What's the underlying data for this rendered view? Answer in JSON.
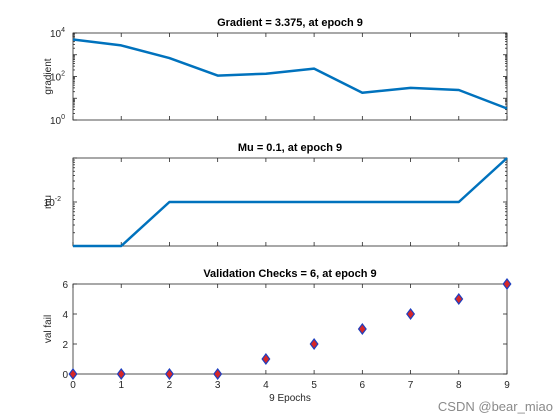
{
  "watermark": "CSDN @bear_miao",
  "colors": {
    "line": "#0072BD",
    "marker_fill": "#D62728",
    "marker_edge": "#1F3FBF",
    "axis": "#262626",
    "background": "#FFFFFF"
  },
  "chart_data": [
    {
      "type": "line",
      "title": "Gradient = 3.375, at epoch 9",
      "xlabel": "",
      "ylabel": "gradient",
      "xlim": [
        0,
        9
      ],
      "ylim": [
        1,
        10000
      ],
      "yscale": "log",
      "ytick_labels": [
        {
          "value": 1,
          "base": "10",
          "exp": "0"
        },
        {
          "value": 100,
          "base": "10",
          "exp": "2"
        },
        {
          "value": 10000,
          "base": "10",
          "exp": "4"
        }
      ],
      "x": [
        0,
        1,
        2,
        3,
        4,
        5,
        6,
        7,
        8,
        9
      ],
      "values": [
        5000,
        2700,
        700,
        110,
        135,
        230,
        18,
        30,
        24,
        3.375
      ],
      "grid": false,
      "x_ticklabels_shown": false
    },
    {
      "type": "line",
      "title": "Mu = 0.1, at epoch 9",
      "xlabel": "",
      "ylabel": "mu",
      "xlim": [
        0,
        9
      ],
      "ylim": [
        0.001,
        0.1
      ],
      "yscale": "log",
      "ytick_labels": [
        {
          "value": 0.01,
          "base": "10",
          "exp": "-2"
        }
      ],
      "x": [
        0,
        1,
        2,
        3,
        4,
        5,
        6,
        7,
        8,
        9
      ],
      "values": [
        0.001,
        0.001,
        0.01,
        0.01,
        0.01,
        0.01,
        0.01,
        0.01,
        0.01,
        0.1
      ],
      "grid": false,
      "x_ticklabels_shown": false
    },
    {
      "type": "scatter",
      "title": "Validation Checks = 6, at epoch 9",
      "xlabel": "9 Epochs",
      "ylabel": "val fail",
      "xlim": [
        0,
        9
      ],
      "ylim": [
        0,
        6
      ],
      "ytick_labels": [
        {
          "value": 0,
          "text": "0"
        },
        {
          "value": 2,
          "text": "2"
        },
        {
          "value": 4,
          "text": "4"
        },
        {
          "value": 6,
          "text": "6"
        }
      ],
      "xtick_labels": [
        "0",
        "1",
        "2",
        "3",
        "4",
        "5",
        "6",
        "7",
        "8",
        "9"
      ],
      "x": [
        0,
        1,
        2,
        3,
        4,
        5,
        6,
        7,
        8,
        9
      ],
      "values": [
        0,
        0,
        0,
        0,
        1,
        2,
        3,
        4,
        5,
        6
      ],
      "marker": "diamond",
      "grid": false
    }
  ]
}
